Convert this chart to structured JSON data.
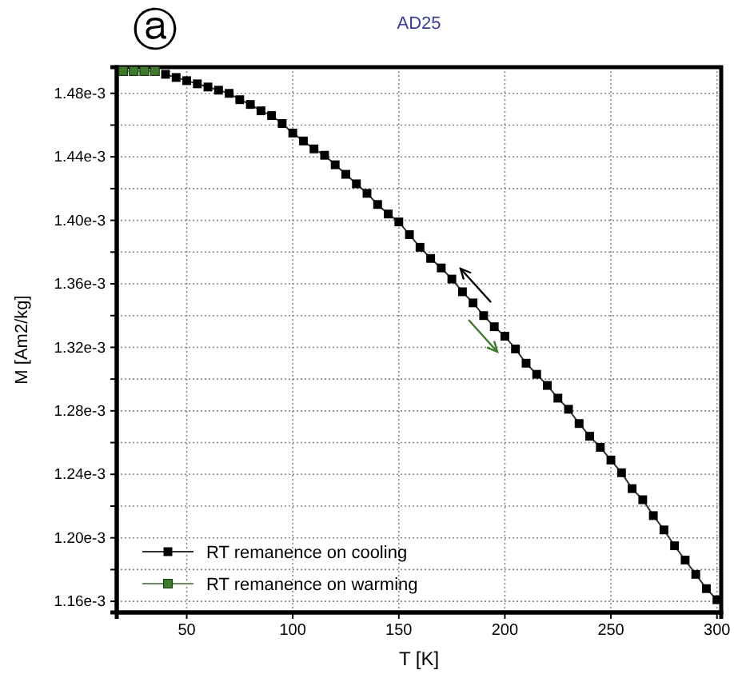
{
  "chart_data": {
    "type": "line",
    "title": "AD25",
    "xlabel": "T [K]",
    "ylabel": "M [Am2/kg]",
    "annotations": [
      "ⓐ"
    ],
    "xlim": [
      17,
      302
    ],
    "xticks": [
      50,
      100,
      150,
      200,
      250,
      300
    ],
    "ylim": [
      0.001153,
      0.0014965
    ],
    "yticks": [
      {
        "value": 0.00116,
        "label": "1.16e-3"
      },
      {
        "value": 0.00118,
        "label": null
      },
      {
        "value": 0.0012,
        "label": "1.20e-3"
      },
      {
        "value": 0.00122,
        "label": null
      },
      {
        "value": 0.00124,
        "label": "1.24e-3"
      },
      {
        "value": 0.00126,
        "label": null
      },
      {
        "value": 0.00128,
        "label": "1.28e-3"
      },
      {
        "value": 0.0013,
        "label": null
      },
      {
        "value": 0.00132,
        "label": "1.32e-3"
      },
      {
        "value": 0.00134,
        "label": null
      },
      {
        "value": 0.00136,
        "label": "1.36e-3"
      },
      {
        "value": 0.00138,
        "label": null
      },
      {
        "value": 0.0014,
        "label": "1.40e-3"
      },
      {
        "value": 0.00142,
        "label": null
      },
      {
        "value": 0.00144,
        "label": "1.44e-3"
      },
      {
        "value": 0.00146,
        "label": null
      },
      {
        "value": 0.00148,
        "label": "1.48e-3"
      }
    ],
    "grid": true,
    "legend": "bottom left",
    "marker": "square",
    "line_style": "solid",
    "series": [
      {
        "name": "RT remanence on cooling",
        "color": "#000000",
        "x": [
          40,
          45,
          50,
          55,
          60,
          65,
          70,
          75,
          80,
          85,
          90,
          95,
          100,
          105,
          110,
          115,
          120,
          125,
          130,
          135,
          140,
          145,
          150,
          155,
          160,
          165,
          170,
          175,
          180,
          185,
          190,
          195,
          200,
          205,
          210,
          215,
          220,
          225,
          230,
          235,
          240,
          245,
          250,
          255,
          260,
          265,
          270,
          275,
          280,
          285,
          290,
          295,
          300
        ],
        "values": [
          0.001492,
          0.00149,
          0.001488,
          0.001486,
          0.001484,
          0.001482,
          0.00148,
          0.001476,
          0.001473,
          0.001469,
          0.001466,
          0.001461,
          0.001455,
          0.00145,
          0.001445,
          0.001441,
          0.001435,
          0.001429,
          0.001423,
          0.001417,
          0.00141,
          0.001404,
          0.001399,
          0.001391,
          0.001383,
          0.001376,
          0.00137,
          0.001363,
          0.001355,
          0.001348,
          0.00134,
          0.001333,
          0.001327,
          0.001319,
          0.00131,
          0.001303,
          0.001296,
          0.001288,
          0.001281,
          0.001272,
          0.001264,
          0.001257,
          0.001249,
          0.001241,
          0.001231,
          0.001224,
          0.001214,
          0.001205,
          0.001195,
          0.001186,
          0.001177,
          0.001168,
          0.001161
        ]
      },
      {
        "name": "RT remanence on warming",
        "color": "#3d7a2c",
        "x": [
          20,
          25,
          30,
          35
        ],
        "values": [
          0.001494,
          0.001494,
          0.001494,
          0.001494
        ]
      }
    ]
  }
}
